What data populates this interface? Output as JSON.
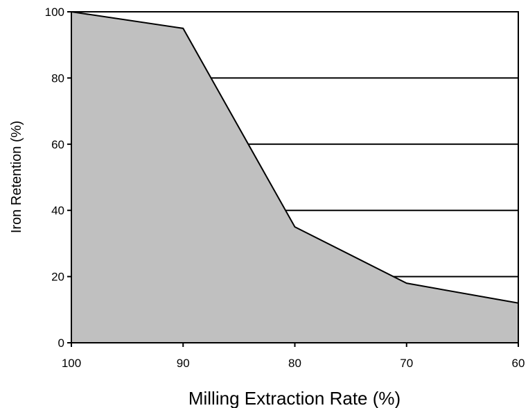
{
  "chart_data": {
    "type": "area",
    "xlabel": "Milling Extraction Rate (%)",
    "ylabel": "Iron Retention (%)",
    "x": [
      100,
      90,
      80,
      70,
      60
    ],
    "series": [
      {
        "values": [
          100,
          95,
          35,
          18,
          12
        ]
      }
    ],
    "xlim": [
      100,
      60
    ],
    "ylim": [
      0,
      100
    ],
    "x_ticks": [
      100,
      90,
      80,
      70,
      60
    ],
    "y_ticks": [
      0,
      20,
      40,
      60,
      80,
      100
    ],
    "x_tick_labels": [
      "100",
      "90",
      "80",
      "70",
      "60"
    ],
    "y_tick_labels": [
      "0",
      "20",
      "40",
      "60",
      "80",
      "100"
    ],
    "x_reversed": true,
    "grid": "horizontal",
    "legend": "none",
    "colors": {
      "fill": "#c0c0c0",
      "line": "#000000",
      "grid": "#000000",
      "background": "#ffffff"
    }
  }
}
